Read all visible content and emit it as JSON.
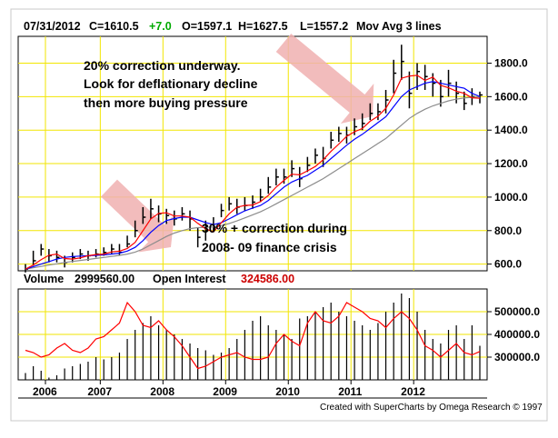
{
  "header": {
    "date": "07/31/2012",
    "close_label": "C=1610.5",
    "change_label": "+7.0",
    "open_label": "O=1597.1",
    "high_label": "H=1627.5",
    "low_label": "L=1557.2",
    "indicator_label": "Mov Avg 3 lines"
  },
  "volume_header": {
    "volume_label": "Volume",
    "volume_value": "2999560.00",
    "oi_label": "Open Interest",
    "oi_value": "324586.00"
  },
  "annotations": {
    "top_line1": "20% correction underway.",
    "top_line2": "Look for deflationary decline",
    "top_line3": "then more buying pressure",
    "mid_line1": "30% + correction during",
    "mid_line2": "2008- 09 finance crisis"
  },
  "credit": "Created with SuperCharts by Omega Research © 1997",
  "colors": {
    "grid": "#f2e600",
    "price_bar": "#000000",
    "ma_fast": "#ff0000",
    "ma_mid": "#0000ff",
    "ma_slow": "#8c8c8c",
    "volume_bar": "#000000",
    "open_interest": "#ff0000",
    "change_positive": "#00aa00",
    "arrow": "#f0b0b0"
  },
  "chart_data": [
    {
      "type": "ohlc",
      "title": "",
      "x_ticks": [
        "2006",
        "2007",
        "2008",
        "2009",
        "2010",
        "2011",
        "2012"
      ],
      "y_ticks": [
        "600.0",
        "800.0",
        "1000.0",
        "1200.0",
        "1400.0",
        "1600.0",
        "1800.0"
      ],
      "ylim": [
        560,
        1960
      ],
      "series": [
        {
          "name": "close",
          "values": [
            570,
            620,
            690,
            650,
            640,
            610,
            640,
            660,
            650,
            660,
            670,
            690,
            670,
            720,
            800,
            880,
            930,
            900,
            890,
            870,
            900,
            870,
            760,
            800,
            820,
            920,
            960,
            940,
            950,
            970,
            1000,
            1060,
            1120,
            1120,
            1170,
            1110,
            1190,
            1250,
            1230,
            1340,
            1380,
            1370,
            1420,
            1440,
            1500,
            1510,
            1580,
            1740,
            1810,
            1620,
            1750,
            1720,
            1680,
            1600,
            1680,
            1620,
            1560,
            1600,
            1610
          ]
        },
        {
          "name": "high",
          "values": [
            600,
            680,
            720,
            690,
            680,
            650,
            670,
            690,
            680,
            690,
            700,
            720,
            720,
            770,
            860,
            940,
            990,
            950,
            930,
            920,
            940,
            920,
            820,
            860,
            880,
            960,
            1000,
            990,
            1000,
            1010,
            1050,
            1120,
            1170,
            1170,
            1220,
            1180,
            1240,
            1290,
            1300,
            1390,
            1420,
            1420,
            1470,
            1500,
            1560,
            1560,
            1640,
            1820,
            1910,
            1750,
            1800,
            1790,
            1740,
            1700,
            1760,
            1690,
            1630,
            1650,
            1630
          ]
        },
        {
          "name": "low",
          "values": [
            550,
            590,
            650,
            610,
            610,
            580,
            610,
            630,
            620,
            640,
            650,
            660,
            650,
            700,
            760,
            840,
            870,
            850,
            840,
            830,
            860,
            800,
            700,
            740,
            790,
            880,
            920,
            900,
            920,
            930,
            970,
            1020,
            1070,
            1080,
            1120,
            1060,
            1150,
            1200,
            1180,
            1290,
            1330,
            1320,
            1370,
            1400,
            1460,
            1460,
            1500,
            1620,
            1700,
            1530,
            1640,
            1640,
            1600,
            1540,
            1600,
            1560,
            1520,
            1550,
            1560
          ]
        },
        {
          "name": "ma_fast",
          "values": [
            570,
            595,
            627,
            653,
            660,
            633,
            630,
            637,
            650,
            657,
            660,
            673,
            677,
            693,
            730,
            800,
            870,
            903,
            907,
            887,
            887,
            880,
            843,
            810,
            793,
            847,
            900,
            940,
            950,
            953,
            973,
            1010,
            1060,
            1100,
            1137,
            1133,
            1157,
            1183,
            1223,
            1273,
            1317,
            1363,
            1390,
            1410,
            1453,
            1483,
            1530,
            1610,
            1710,
            1723,
            1727,
            1697,
            1717,
            1667,
            1653,
            1633,
            1620,
            1593,
            1590
          ]
        },
        {
          "name": "ma_mid",
          "values": [
            570,
            585,
            600,
            615,
            630,
            640,
            645,
            648,
            650,
            652,
            655,
            660,
            665,
            678,
            700,
            740,
            790,
            830,
            860,
            872,
            880,
            880,
            864,
            848,
            836,
            847,
            870,
            895,
            918,
            935,
            950,
            980,
            1020,
            1060,
            1090,
            1110,
            1130,
            1160,
            1190,
            1230,
            1270,
            1310,
            1345,
            1375,
            1410,
            1445,
            1480,
            1540,
            1600,
            1640,
            1660,
            1680,
            1690,
            1680,
            1670,
            1660,
            1650,
            1620,
            1600
          ]
        },
        {
          "name": "ma_slow",
          "values": [
            570,
            578,
            586,
            594,
            602,
            610,
            616,
            622,
            628,
            634,
            640,
            646,
            652,
            660,
            672,
            690,
            715,
            740,
            765,
            785,
            800,
            812,
            818,
            820,
            822,
            830,
            842,
            858,
            876,
            894,
            912,
            935,
            960,
            985,
            1010,
            1035,
            1060,
            1085,
            1110,
            1140,
            1170,
            1200,
            1230,
            1260,
            1290,
            1320,
            1350,
            1390,
            1430,
            1470,
            1500,
            1525,
            1545,
            1560,
            1575,
            1585,
            1592,
            1596,
            1598
          ]
        }
      ]
    },
    {
      "type": "bar",
      "title": "",
      "y_ticks": [
        "300000.0",
        "400000.0",
        "500000.0"
      ],
      "ylim": [
        200000,
        600000
      ],
      "series": [
        {
          "name": "Volume",
          "values": [
            230000,
            260000,
            240000,
            210000,
            220000,
            250000,
            260000,
            270000,
            280000,
            300000,
            290000,
            300000,
            320000,
            380000,
            420000,
            450000,
            480000,
            440000,
            420000,
            400000,
            380000,
            360000,
            340000,
            330000,
            310000,
            320000,
            340000,
            380000,
            420000,
            460000,
            480000,
            440000,
            420000,
            400000,
            380000,
            470000,
            480000,
            500000,
            520000,
            540000,
            500000,
            480000,
            460000,
            440000,
            420000,
            450000,
            500000,
            540000,
            580000,
            560000,
            500000,
            420000,
            380000,
            360000,
            420000,
            440000,
            380000,
            440000,
            350000
          ]
        },
        {
          "name": "Open Interest",
          "values": [
            330000,
            320000,
            300000,
            310000,
            340000,
            360000,
            330000,
            320000,
            340000,
            380000,
            390000,
            420000,
            450000,
            540000,
            500000,
            440000,
            430000,
            460000,
            420000,
            390000,
            350000,
            300000,
            250000,
            260000,
            280000,
            300000,
            310000,
            320000,
            300000,
            290000,
            290000,
            300000,
            360000,
            400000,
            370000,
            350000,
            450000,
            500000,
            460000,
            450000,
            480000,
            540000,
            520000,
            500000,
            470000,
            460000,
            430000,
            470000,
            500000,
            470000,
            420000,
            350000,
            330000,
            300000,
            330000,
            360000,
            320000,
            310000,
            325000
          ]
        }
      ]
    }
  ]
}
